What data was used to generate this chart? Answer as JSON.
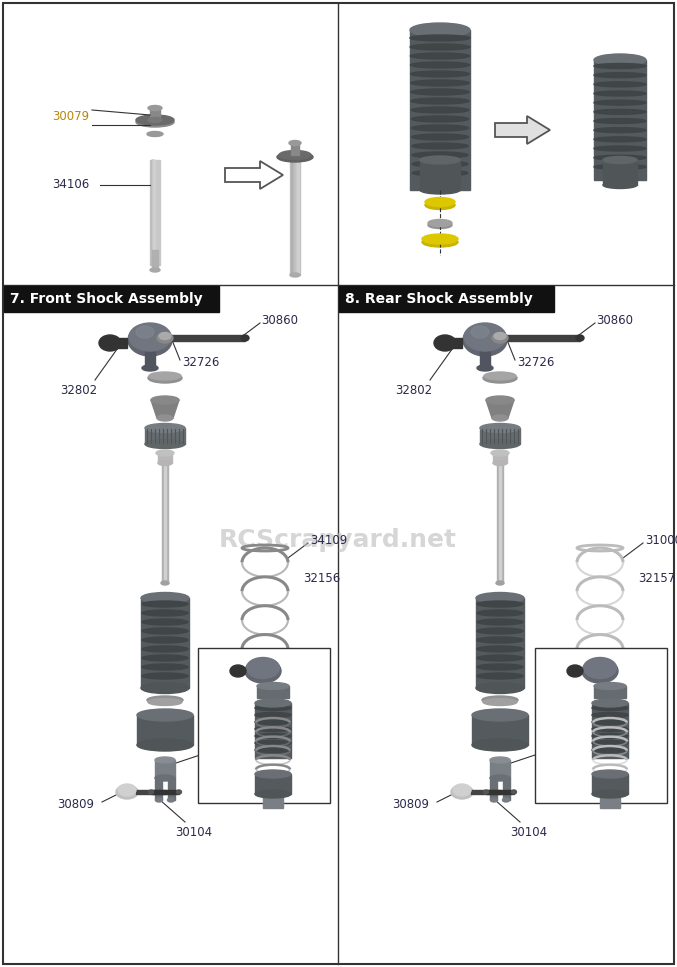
{
  "bg_color": "#f5f5f5",
  "border_color": "#333333",
  "section7_title": "7. Front Shock Assembly",
  "section8_title": "8. Rear Shock Assembly",
  "watermark": "RCScrapyard.net",
  "watermark_color": "#bbbbbb",
  "watermark_fontsize": 18,
  "section_title_bg": "#000000",
  "section_title_color": "#ffffff",
  "section_title_fontsize": 10,
  "part_label_fontsize": 8.5,
  "part_label_color": "#2a2a4a",
  "part_label_color_orange": "#b8860b",
  "dark_part": "#555a5f",
  "medium_part": "#7a7f85",
  "light_part": "#aaaaaa",
  "silver_part": "#c0c0c0",
  "yellow_part": "#d4c000",
  "spring_color": "#888888",
  "spring_rear_color": "#bbbbbb",
  "thread_dark": "#454a50",
  "thread_mid": "#606570",
  "thread_light": "#757a80"
}
